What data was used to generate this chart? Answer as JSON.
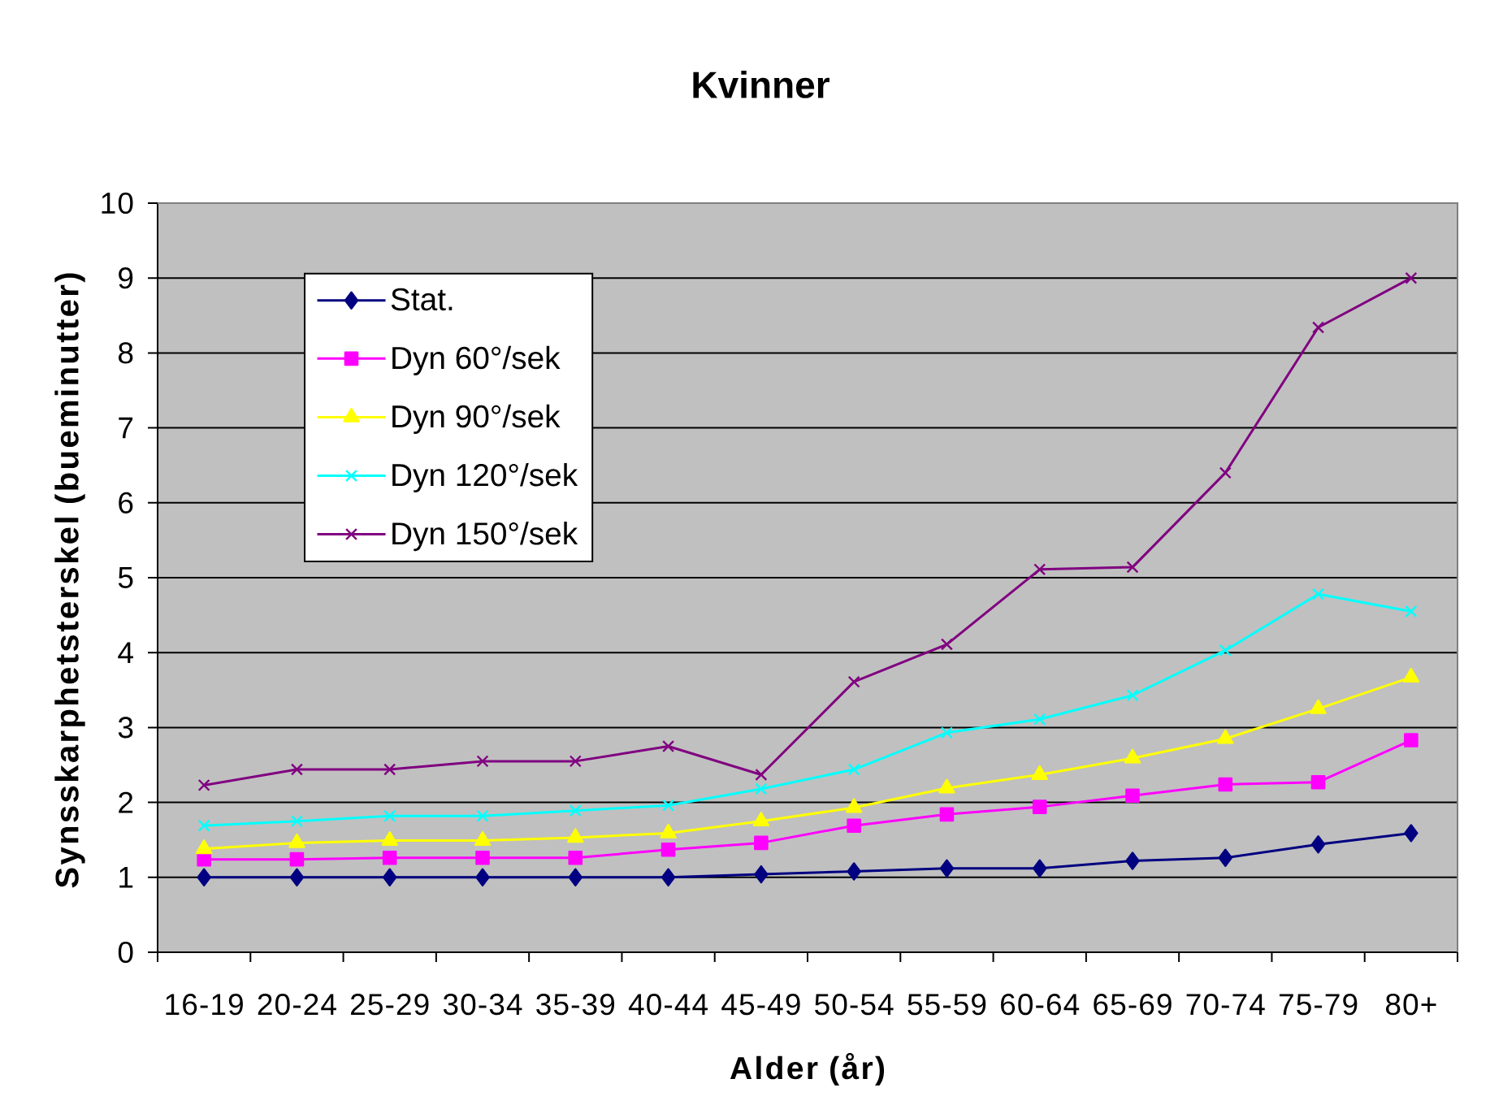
{
  "chart_data": {
    "type": "line",
    "title": "Kvinner",
    "xlabel": "Alder (år)",
    "ylabel": "Synsskarphetsterskel (bueminutter)",
    "categories": [
      "16-19",
      "20-24",
      "25-29",
      "30-34",
      "35-39",
      "40-44",
      "45-49",
      "50-54",
      "55-59",
      "60-64",
      "65-69",
      "70-74",
      "75-79",
      "80+"
    ],
    "series": [
      {
        "name": "Stat.",
        "color": "#000080",
        "marker": "diamond",
        "values": [
          1.0,
          1.0,
          1.0,
          1.0,
          1.0,
          1.0,
          1.04,
          1.08,
          1.12,
          1.12,
          1.22,
          1.26,
          1.44,
          1.59
        ]
      },
      {
        "name": "Dyn 60°/sek",
        "color": "#ff00ff",
        "marker": "square",
        "values": [
          1.24,
          1.24,
          1.26,
          1.26,
          1.26,
          1.37,
          1.46,
          1.69,
          1.84,
          1.94,
          2.09,
          2.24,
          2.27,
          2.83
        ]
      },
      {
        "name": "Dyn 90°/sek",
        "color": "#ffff00",
        "marker": "triangle",
        "values": [
          1.38,
          1.46,
          1.49,
          1.49,
          1.53,
          1.59,
          1.75,
          1.93,
          2.19,
          2.37,
          2.59,
          2.85,
          3.25,
          3.67
        ]
      },
      {
        "name": "Dyn 120°/sek",
        "color": "#00ffff",
        "marker": "cross",
        "values": [
          1.69,
          1.75,
          1.82,
          1.82,
          1.89,
          1.96,
          2.18,
          2.44,
          2.93,
          3.11,
          3.43,
          4.03,
          4.78,
          4.55
        ]
      },
      {
        "name": "Dyn 150°/sek",
        "color": "#800080",
        "marker": "cross",
        "values": [
          2.23,
          2.44,
          2.44,
          2.55,
          2.55,
          2.75,
          2.37,
          3.61,
          4.11,
          5.11,
          5.14,
          6.4,
          8.34,
          9.0
        ]
      }
    ],
    "ylim": [
      0,
      10
    ],
    "yticks": [
      0,
      1,
      2,
      3,
      4,
      5,
      6,
      7,
      8,
      9,
      10
    ],
    "grid": "y",
    "legend": "top left",
    "line_style": "solid"
  }
}
